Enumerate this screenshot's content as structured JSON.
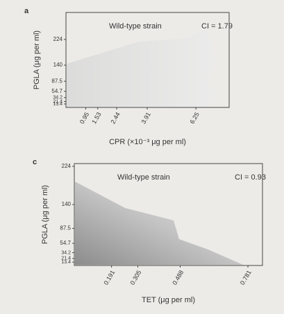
{
  "chart_data": [
    {
      "type": "contour",
      "panel_label": "a",
      "annotations": [
        "Wild-type strain",
        "CI = 1.79"
      ],
      "xlabel": "CPR (×10⁻³ μg per ml)",
      "ylabel": "PGLA (μg per ml)",
      "xlim": [
        0,
        7.85
      ],
      "xticks": [
        0.95,
        1.53,
        2.44,
        3.91,
        6.25
      ],
      "ylim": [
        2,
        312
      ],
      "yticks": [
        13.4,
        21.4,
        34.2,
        54.7,
        87.5,
        140,
        224
      ]
    },
    {
      "type": "contour",
      "panel_label": "c",
      "annotations": [
        "Wild-type strain",
        "CI = 0.93"
      ],
      "xlabel": "TET (μg per ml)",
      "ylabel": "PGLA (μg per ml)",
      "xlim": [
        0.03,
        0.844
      ],
      "xticks": [
        0.191,
        0.305,
        0.488,
        0.781
      ],
      "ylim": [
        6,
        230
      ],
      "yticks": [
        13.4,
        21.4,
        34.2,
        54.7,
        87.5,
        140,
        224
      ]
    }
  ]
}
